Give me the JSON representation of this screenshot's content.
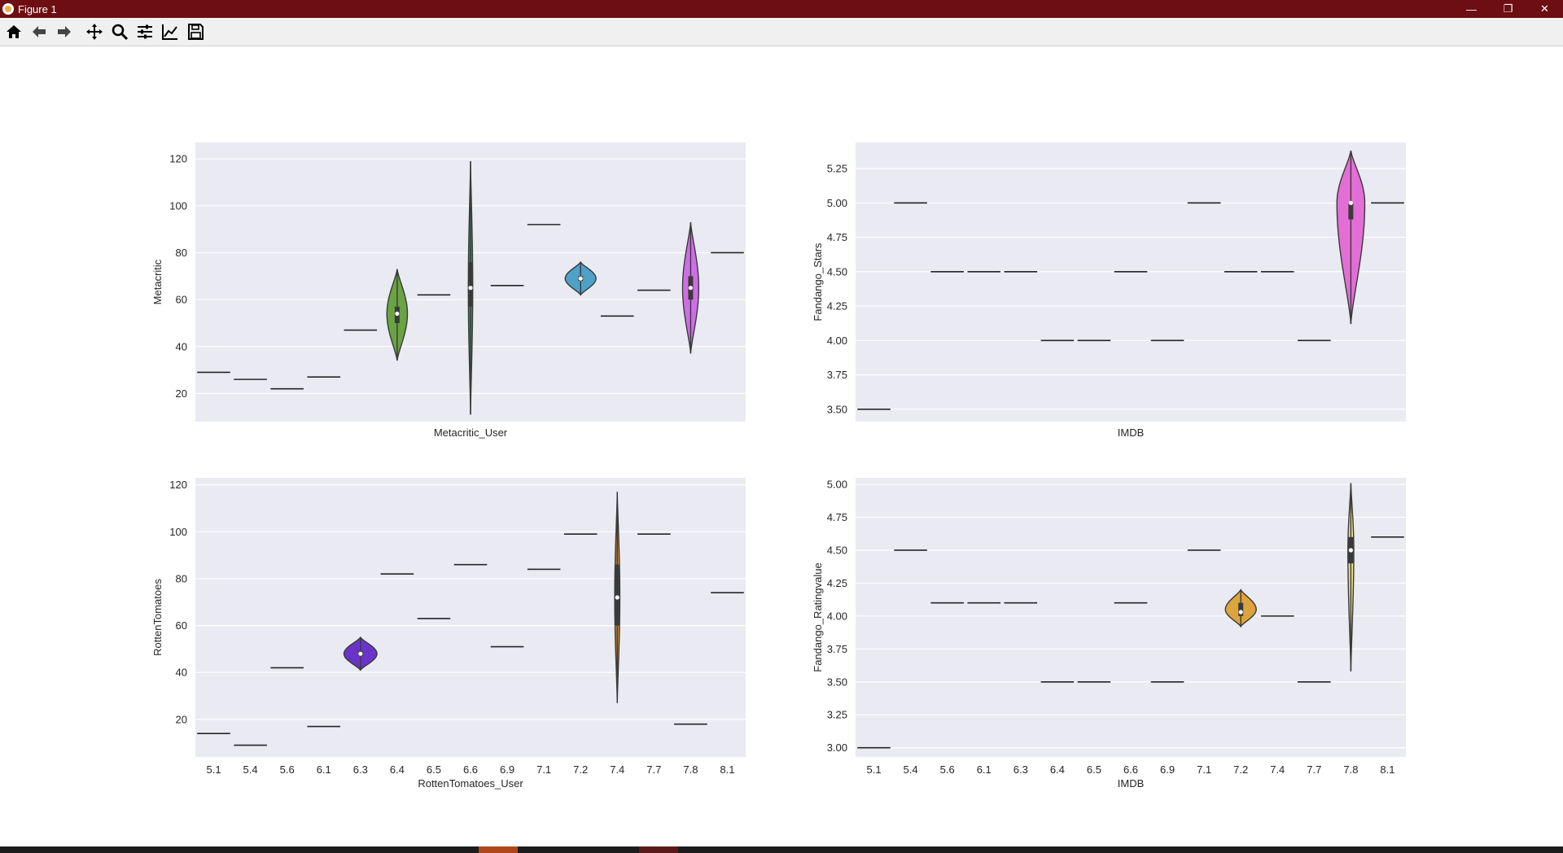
{
  "window": {
    "title": "Figure 1"
  },
  "window_controls": {
    "minimize": "—",
    "restore": "❐",
    "close": "✕"
  },
  "toolbar": {
    "items": [
      {
        "name": "home-icon"
      },
      {
        "name": "back-icon"
      },
      {
        "name": "forward-icon"
      },
      {
        "name": "pan-icon"
      },
      {
        "name": "zoom-icon"
      },
      {
        "name": "configure-subplots-icon"
      },
      {
        "name": "edit-axis-icon"
      },
      {
        "name": "save-icon"
      }
    ]
  },
  "taskbar": {
    "accent_colors": [
      "#b0471b",
      "#5a1a1a"
    ]
  },
  "chart_data": [
    {
      "type": "violin",
      "categories": [
        "5.1",
        "5.4",
        "5.6",
        "6.1",
        "6.3",
        "6.4",
        "6.5",
        "6.6",
        "6.9",
        "7.1",
        "7.2",
        "7.4",
        "7.7",
        "7.8",
        "8.1"
      ],
      "show_x_tick_labels": false,
      "xlabel": "Metacritic_User",
      "ylabel": "Metacritic",
      "ylim": [
        8,
        127
      ],
      "yticks": [
        20,
        40,
        60,
        80,
        100,
        120
      ],
      "grid": true,
      "violins": [
        {
          "category": "5.1",
          "kind": "line",
          "value": 29
        },
        {
          "category": "5.4",
          "kind": "line",
          "value": 26
        },
        {
          "category": "5.6",
          "kind": "line",
          "value": 22
        },
        {
          "category": "6.1",
          "kind": "line",
          "value": 27
        },
        {
          "category": "6.3",
          "kind": "line",
          "value": 47
        },
        {
          "category": "6.4",
          "kind": "violin",
          "color": "#6aa342",
          "min": 34,
          "max": 73,
          "median": 54,
          "q1": 50,
          "q3": 57,
          "peak": 54,
          "halfwidth": 0.28
        },
        {
          "category": "6.5",
          "kind": "line",
          "value": 62
        },
        {
          "category": "6.6",
          "kind": "violin",
          "color": "#2f9077",
          "min": 11,
          "max": 119,
          "median": 65,
          "q1": 57,
          "q3": 76,
          "peak": 65,
          "halfwidth": 0.06
        },
        {
          "category": "6.9",
          "kind": "line",
          "value": 66
        },
        {
          "category": "7.1",
          "kind": "line",
          "value": 92
        },
        {
          "category": "7.2",
          "kind": "violin",
          "color": "#4ea1c8",
          "min": 62,
          "max": 76,
          "median": 69,
          "q1": 68,
          "q3": 70,
          "peak": 69,
          "halfwidth": 0.42
        },
        {
          "category": "7.4",
          "kind": "line",
          "value": 53
        },
        {
          "category": "7.7",
          "kind": "line",
          "value": 64
        },
        {
          "category": "7.8",
          "kind": "violin",
          "color": "#cf6de8",
          "min": 37,
          "max": 93,
          "median": 65,
          "q1": 60,
          "q3": 70,
          "peak": 65,
          "halfwidth": 0.22
        },
        {
          "category": "8.1",
          "kind": "line",
          "value": 80
        }
      ]
    },
    {
      "type": "violin",
      "categories": [
        "5.1",
        "5.4",
        "5.6",
        "6.1",
        "6.3",
        "6.4",
        "6.5",
        "6.6",
        "6.9",
        "7.1",
        "7.2",
        "7.4",
        "7.7",
        "7.8",
        "8.1"
      ],
      "show_x_tick_labels": false,
      "xlabel": "IMDB",
      "ylabel": "Fandango_Stars",
      "ylim": [
        3.41,
        5.44
      ],
      "yticks": [
        3.5,
        3.75,
        4.0,
        4.25,
        4.5,
        4.75,
        5.0,
        5.25
      ],
      "ytick_labels": [
        "3.50",
        "3.75",
        "4.00",
        "4.25",
        "4.50",
        "4.75",
        "5.00",
        "5.25"
      ],
      "grid": true,
      "violins": [
        {
          "category": "5.1",
          "kind": "line",
          "value": 3.5
        },
        {
          "category": "5.4",
          "kind": "line",
          "value": 5.0
        },
        {
          "category": "5.6",
          "kind": "line",
          "value": 4.5
        },
        {
          "category": "6.1",
          "kind": "line",
          "value": 4.5
        },
        {
          "category": "6.3",
          "kind": "line",
          "value": 4.5
        },
        {
          "category": "6.4",
          "kind": "line",
          "value": 4.0
        },
        {
          "category": "6.5",
          "kind": "line",
          "value": 4.0
        },
        {
          "category": "6.6",
          "kind": "line",
          "value": 4.5
        },
        {
          "category": "6.9",
          "kind": "line",
          "value": 4.0
        },
        {
          "category": "7.1",
          "kind": "line",
          "value": 5.0
        },
        {
          "category": "7.2",
          "kind": "line",
          "value": 4.5
        },
        {
          "category": "7.4",
          "kind": "line",
          "value": 4.5
        },
        {
          "category": "7.7",
          "kind": "line",
          "value": 4.0
        },
        {
          "category": "7.8",
          "kind": "violin",
          "color": "#e36ed6",
          "min": 4.12,
          "max": 5.38,
          "median": 5.0,
          "q1": 4.88,
          "q3": 5.0,
          "peak": 5.0,
          "halfwidth": 0.38
        },
        {
          "category": "8.1",
          "kind": "line",
          "value": 5.0
        }
      ]
    },
    {
      "type": "violin",
      "categories": [
        "5.1",
        "5.4",
        "5.6",
        "6.1",
        "6.3",
        "6.4",
        "6.5",
        "6.6",
        "6.9",
        "7.1",
        "7.2",
        "7.4",
        "7.7",
        "7.8",
        "8.1"
      ],
      "show_x_tick_labels": true,
      "xlabel": "RottenTomatoes_User",
      "ylabel": "RottenTomatoes",
      "ylim": [
        4,
        123
      ],
      "yticks": [
        20,
        40,
        60,
        80,
        100,
        120
      ],
      "grid": true,
      "violins": [
        {
          "category": "5.1",
          "kind": "line",
          "value": 14
        },
        {
          "category": "5.4",
          "kind": "line",
          "value": 9
        },
        {
          "category": "5.6",
          "kind": "line",
          "value": 42
        },
        {
          "category": "6.1",
          "kind": "line",
          "value": 17
        },
        {
          "category": "6.3",
          "kind": "violin",
          "color": "#6a34c9",
          "min": 41,
          "max": 55,
          "median": 48,
          "q1": 47,
          "q3": 49,
          "peak": 48,
          "halfwidth": 0.45
        },
        {
          "category": "6.4",
          "kind": "line",
          "value": 82
        },
        {
          "category": "6.5",
          "kind": "line",
          "value": 63
        },
        {
          "category": "6.6",
          "kind": "line",
          "value": 86
        },
        {
          "category": "6.9",
          "kind": "line",
          "value": 51
        },
        {
          "category": "7.1",
          "kind": "line",
          "value": 84
        },
        {
          "category": "7.2",
          "kind": "line",
          "value": 99
        },
        {
          "category": "7.4",
          "kind": "violin",
          "color": "#cd8a35",
          "min": 27,
          "max": 117,
          "median": 72,
          "q1": 60,
          "q3": 86,
          "peak": 72,
          "halfwidth": 0.07
        },
        {
          "category": "7.7",
          "kind": "line",
          "value": 99
        },
        {
          "category": "7.8",
          "kind": "line",
          "value": 18
        },
        {
          "category": "8.1",
          "kind": "line",
          "value": 74
        }
      ]
    },
    {
      "type": "violin",
      "categories": [
        "5.1",
        "5.4",
        "5.6",
        "6.1",
        "6.3",
        "6.4",
        "6.5",
        "6.6",
        "6.9",
        "7.1",
        "7.2",
        "7.4",
        "7.7",
        "7.8",
        "8.1"
      ],
      "show_x_tick_labels": true,
      "xlabel": "IMDB",
      "ylabel": "Fandango_Ratingvalue",
      "ylim": [
        2.93,
        5.05
      ],
      "yticks": [
        3.0,
        3.25,
        3.5,
        3.75,
        4.0,
        4.25,
        4.5,
        4.75,
        5.0
      ],
      "ytick_labels": [
        "3.00",
        "3.25",
        "3.50",
        "3.75",
        "4.00",
        "4.25",
        "4.50",
        "4.75",
        "5.00"
      ],
      "grid": true,
      "violins": [
        {
          "category": "5.1",
          "kind": "line",
          "value": 3.0
        },
        {
          "category": "5.4",
          "kind": "line",
          "value": 4.5
        },
        {
          "category": "5.6",
          "kind": "line",
          "value": 4.1
        },
        {
          "category": "6.1",
          "kind": "line",
          "value": 4.1
        },
        {
          "category": "6.3",
          "kind": "line",
          "value": 4.1
        },
        {
          "category": "6.4",
          "kind": "line",
          "value": 3.5
        },
        {
          "category": "6.5",
          "kind": "line",
          "value": 3.5
        },
        {
          "category": "6.6",
          "kind": "line",
          "value": 4.1
        },
        {
          "category": "6.9",
          "kind": "line",
          "value": 3.5
        },
        {
          "category": "7.1",
          "kind": "line",
          "value": 4.5
        },
        {
          "category": "7.2",
          "kind": "violin",
          "color": "#dba43c",
          "min": 3.92,
          "max": 4.2,
          "median": 4.03,
          "q1": 4.0,
          "q3": 4.1,
          "peak": 4.05,
          "halfwidth": 0.42
        },
        {
          "category": "7.4",
          "kind": "line",
          "value": 4.0
        },
        {
          "category": "7.7",
          "kind": "line",
          "value": 3.5
        },
        {
          "category": "7.8",
          "kind": "violin",
          "color": "#e7de8a",
          "min": 3.58,
          "max": 5.01,
          "median": 4.5,
          "q1": 4.4,
          "q3": 4.6,
          "peak": 4.5,
          "halfwidth": 0.08
        },
        {
          "category": "8.1",
          "kind": "line",
          "value": 4.6
        }
      ]
    }
  ]
}
